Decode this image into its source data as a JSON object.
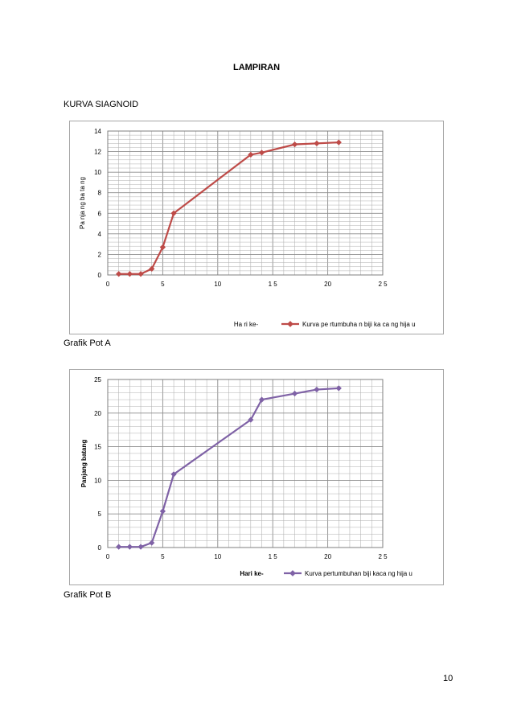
{
  "page": {
    "title": "LAMPIRAN",
    "section_label": "KURVA SIAGNOID",
    "page_number": "10"
  },
  "chart_data": [
    {
      "type": "line",
      "title": "",
      "xlabel": "Ha ri ke-",
      "ylabel": "Pa nja ng ba ta ng",
      "xlim": [
        0,
        25
      ],
      "ylim": [
        0,
        14
      ],
      "x_ticks": [
        0,
        5,
        10,
        15,
        20,
        25
      ],
      "y_ticks": [
        0,
        2,
        4,
        6,
        8,
        10,
        12,
        14
      ],
      "x_tick_labels": [
        "0",
        "5",
        "10",
        "1 5",
        "20",
        "2 5"
      ],
      "grid": true,
      "legend_position": "bottom-right",
      "caption": "Grafik Pot A",
      "series": [
        {
          "name": "Kurva pe rtumbuha n biji ka ca ng hija u",
          "color": "#be4b48",
          "marker": "diamond",
          "x": [
            1,
            2,
            3,
            4,
            5,
            6,
            13,
            14,
            17,
            19,
            21
          ],
          "y": [
            0.1,
            0.1,
            0.1,
            0.6,
            2.7,
            6.0,
            11.7,
            11.9,
            12.7,
            12.8,
            12.9
          ]
        }
      ]
    },
    {
      "type": "line",
      "title": "",
      "xlabel": "Hari ke-",
      "ylabel": "Panjang batang",
      "xlim": [
        0,
        25
      ],
      "ylim": [
        0,
        25
      ],
      "x_ticks": [
        0,
        5,
        10,
        15,
        20,
        25
      ],
      "y_ticks": [
        0,
        5,
        10,
        15,
        20,
        25
      ],
      "x_tick_labels": [
        "0",
        "5",
        "10",
        "1 5",
        "20",
        "2 5"
      ],
      "grid": true,
      "legend_position": "bottom-right",
      "caption": "Grafik Pot B",
      "series": [
        {
          "name": "Kurva pertumbuhan biji kaca ng hija u",
          "color": "#7f62a6",
          "marker": "diamond",
          "x": [
            1,
            2,
            3,
            4,
            5,
            6,
            13,
            14,
            17,
            19,
            21
          ],
          "y": [
            0.1,
            0.1,
            0.1,
            0.7,
            5.4,
            10.9,
            19.0,
            22.0,
            22.9,
            23.5,
            23.7
          ]
        }
      ]
    }
  ]
}
